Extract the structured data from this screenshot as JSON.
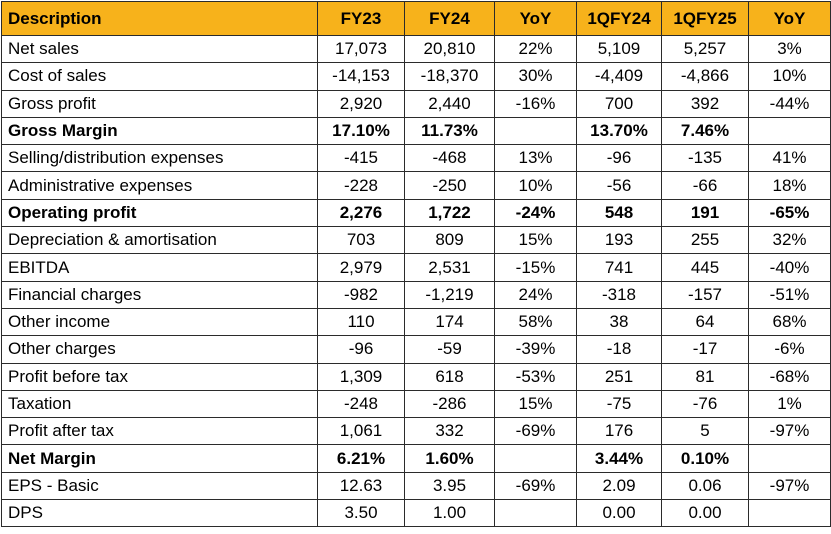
{
  "columns": [
    "Description",
    "FY23",
    "FY24",
    "YoY",
    "1QFY24",
    "1QFY25",
    "YoY"
  ],
  "colors": {
    "header_bg": "#F7B21B",
    "border": "#2b2b2b",
    "text": "#000000"
  },
  "rows": [
    {
      "bold": false,
      "cells": [
        "Net sales",
        "17,073",
        "20,810",
        "22%",
        "5,109",
        "5,257",
        "3%"
      ]
    },
    {
      "bold": false,
      "cells": [
        "Cost of sales",
        "-14,153",
        "-18,370",
        "30%",
        "-4,409",
        "-4,866",
        "10%"
      ]
    },
    {
      "bold": false,
      "cells": [
        "Gross profit",
        "2,920",
        "2,440",
        "-16%",
        "700",
        "392",
        "-44%"
      ]
    },
    {
      "bold": true,
      "cells": [
        "Gross Margin",
        "17.10%",
        "11.73%",
        "",
        "13.70%",
        "7.46%",
        ""
      ]
    },
    {
      "bold": false,
      "cells": [
        "Selling/distribution expenses",
        "-415",
        "-468",
        "13%",
        "-96",
        "-135",
        "41%"
      ]
    },
    {
      "bold": false,
      "cells": [
        "Administrative expenses",
        "-228",
        "-250",
        "10%",
        "-56",
        "-66",
        "18%"
      ]
    },
    {
      "bold": true,
      "cells": [
        "Operating profit",
        "2,276",
        "1,722",
        "-24%",
        "548",
        "191",
        "-65%"
      ]
    },
    {
      "bold": false,
      "cells": [
        "Depreciation & amortisation",
        "703",
        "809",
        "15%",
        "193",
        "255",
        "32%"
      ]
    },
    {
      "bold": false,
      "cells": [
        "EBITDA",
        "2,979",
        "2,531",
        "-15%",
        "741",
        "445",
        "-40%"
      ]
    },
    {
      "bold": false,
      "cells": [
        "Financial charges",
        "-982",
        "-1,219",
        "24%",
        "-318",
        "-157",
        "-51%"
      ]
    },
    {
      "bold": false,
      "cells": [
        "Other income",
        "110",
        "174",
        "58%",
        "38",
        "64",
        "68%"
      ]
    },
    {
      "bold": false,
      "cells": [
        "Other charges",
        "-96",
        "-59",
        "-39%",
        "-18",
        "-17",
        "-6%"
      ]
    },
    {
      "bold": false,
      "cells": [
        "Profit before tax",
        "1,309",
        "618",
        "-53%",
        "251",
        "81",
        "-68%"
      ]
    },
    {
      "bold": false,
      "cells": [
        "Taxation",
        "-248",
        "-286",
        "15%",
        "-75",
        "-76",
        "1%"
      ]
    },
    {
      "bold": false,
      "cells": [
        "Profit after tax",
        "1,061",
        "332",
        "-69%",
        "176",
        "5",
        "-97%"
      ]
    },
    {
      "bold": true,
      "cells": [
        "Net Margin",
        "6.21%",
        "1.60%",
        "",
        "3.44%",
        "0.10%",
        ""
      ]
    },
    {
      "bold": false,
      "cells": [
        "EPS - Basic",
        "12.63",
        "3.95",
        "-69%",
        "2.09",
        "0.06",
        "-97%"
      ]
    },
    {
      "bold": false,
      "cells": [
        "DPS",
        "3.50",
        "1.00",
        "",
        "0.00",
        "0.00",
        ""
      ]
    }
  ]
}
